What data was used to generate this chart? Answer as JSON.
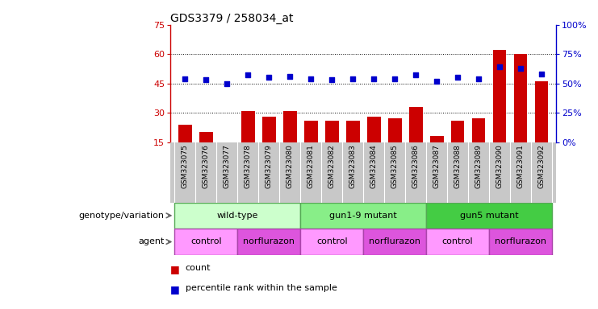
{
  "title": "GDS3379 / 258034_at",
  "samples": [
    "GSM323075",
    "GSM323076",
    "GSM323077",
    "GSM323078",
    "GSM323079",
    "GSM323080",
    "GSM323081",
    "GSM323082",
    "GSM323083",
    "GSM323084",
    "GSM323085",
    "GSM323086",
    "GSM323087",
    "GSM323088",
    "GSM323089",
    "GSM323090",
    "GSM323091",
    "GSM323092"
  ],
  "counts": [
    24,
    20,
    15,
    31,
    28,
    31,
    26,
    26,
    26,
    28,
    27,
    33,
    18,
    26,
    27,
    62,
    60,
    46
  ],
  "percentile_ranks": [
    54,
    53,
    50,
    57,
    55,
    56,
    54,
    53,
    54,
    54,
    54,
    57,
    52,
    55,
    54,
    64,
    63,
    58
  ],
  "bar_color": "#cc0000",
  "dot_color": "#0000cc",
  "ylim_left": [
    15,
    75
  ],
  "ylim_right": [
    0,
    100
  ],
  "yticks_left": [
    15,
    30,
    45,
    60,
    75
  ],
  "yticks_right": [
    0,
    25,
    50,
    75,
    100
  ],
  "ytick_labels_right": [
    "0%",
    "25%",
    "50%",
    "75%",
    "100%"
  ],
  "grid_values": [
    30,
    45,
    60
  ],
  "genotype_groups": [
    {
      "label": "wild-type",
      "start": 0,
      "end": 6,
      "color": "#ccffcc"
    },
    {
      "label": "gun1-9 mutant",
      "start": 6,
      "end": 12,
      "color": "#88ee88"
    },
    {
      "label": "gun5 mutant",
      "start": 12,
      "end": 18,
      "color": "#44cc44"
    }
  ],
  "agent_groups": [
    {
      "label": "control",
      "start": 0,
      "end": 3,
      "color": "#ff99ff"
    },
    {
      "label": "norflurazon",
      "start": 3,
      "end": 6,
      "color": "#dd55dd"
    },
    {
      "label": "control",
      "start": 6,
      "end": 9,
      "color": "#ff99ff"
    },
    {
      "label": "norflurazon",
      "start": 9,
      "end": 12,
      "color": "#dd55dd"
    },
    {
      "label": "control",
      "start": 12,
      "end": 15,
      "color": "#ff99ff"
    },
    {
      "label": "norflurazon",
      "start": 15,
      "end": 18,
      "color": "#dd55dd"
    }
  ],
  "genotype_label": "genotype/variation",
  "agent_label": "agent",
  "legend_count": "count",
  "legend_pct": "percentile rank within the sample",
  "left_tick_color": "#cc0000",
  "right_tick_color": "#0000cc",
  "bar_width": 0.65,
  "sample_band_color": "#c8c8c8",
  "figure_bg": "#ffffff"
}
